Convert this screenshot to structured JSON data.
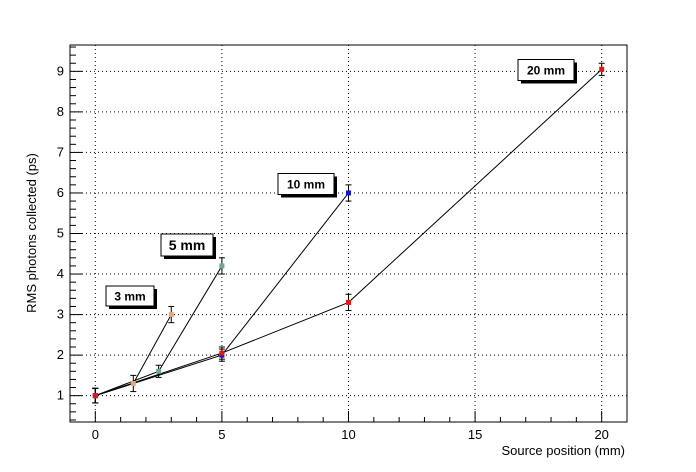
{
  "chart_data": {
    "type": "scatter",
    "xlabel": "Source position (mm)",
    "ylabel": "RMS photons collected (ps)",
    "xlim": [
      -1,
      21
    ],
    "ylim": [
      0.35,
      9.65
    ],
    "x_ticks": [
      0,
      5,
      10,
      15,
      20
    ],
    "y_ticks": [
      1,
      2,
      3,
      4,
      5,
      6,
      7,
      8,
      9
    ],
    "grid": true,
    "series": [
      {
        "name": "3 mm",
        "color": "#e8a77a",
        "points": [
          {
            "x": 0,
            "y": 1.0,
            "err": 0.18
          },
          {
            "x": 1.5,
            "y": 1.3,
            "err": 0.2
          },
          {
            "x": 3.0,
            "y": 3.0,
            "err": 0.2
          }
        ]
      },
      {
        "name": "5 mm",
        "color": "#6fa892",
        "points": [
          {
            "x": 0,
            "y": 1.0,
            "err": 0.18
          },
          {
            "x": 2.5,
            "y": 1.6,
            "err": 0.15
          },
          {
            "x": 5.0,
            "y": 4.2,
            "err": 0.2
          }
        ]
      },
      {
        "name": "10 mm",
        "color": "#1414d8",
        "points": [
          {
            "x": 0,
            "y": 1.0,
            "err": 0.18
          },
          {
            "x": 5.0,
            "y": 2.0,
            "err": 0.15
          },
          {
            "x": 10.0,
            "y": 6.0,
            "err": 0.2
          }
        ]
      },
      {
        "name": "20 mm",
        "color": "#e81414",
        "points": [
          {
            "x": 0,
            "y": 1.0,
            "err": 0.18
          },
          {
            "x": 5.0,
            "y": 2.05,
            "err": 0.15
          },
          {
            "x": 10.0,
            "y": 3.3,
            "err": 0.2
          },
          {
            "x": 20.0,
            "y": 9.05,
            "err": 0.15
          }
        ]
      }
    ],
    "annotations": [
      {
        "text": "3 mm",
        "series": "3 mm"
      },
      {
        "text": "5 mm",
        "series": "5 mm"
      },
      {
        "text": "10 mm",
        "series": "10 mm"
      },
      {
        "text": "20 mm",
        "series": "20 mm"
      }
    ]
  }
}
